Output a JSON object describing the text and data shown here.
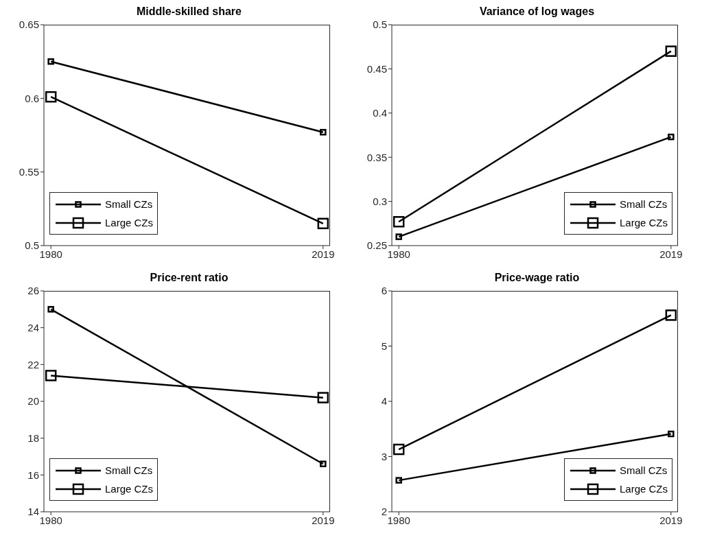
{
  "chart_data": [
    {
      "type": "line",
      "title": "Middle-skilled share",
      "x": [
        "1980",
        "2019"
      ],
      "xlim": [
        "1979",
        "2020"
      ],
      "xticks": [
        "1980",
        "2019"
      ],
      "ylim": [
        0.5,
        0.65
      ],
      "yticks": [
        0.5,
        0.55,
        0.6,
        0.65
      ],
      "marker": "square",
      "legend": "bottom left",
      "grid": false,
      "series": [
        {
          "name": "Small CZs",
          "color": "#000000",
          "values": [
            0.625,
            0.577
          ]
        },
        {
          "name": "Large CZs",
          "color": "#000000",
          "values": [
            0.601,
            0.515
          ]
        }
      ]
    },
    {
      "type": "line",
      "title": "Variance of log wages",
      "x": [
        "1980",
        "2019"
      ],
      "xlim": [
        "1979",
        "2020"
      ],
      "xticks": [
        "1980",
        "2019"
      ],
      "ylim": [
        0.25,
        0.5
      ],
      "yticks": [
        0.25,
        0.3,
        0.35,
        0.4,
        0.45,
        0.5
      ],
      "marker": "square",
      "legend": "bottom right",
      "grid": false,
      "series": [
        {
          "name": "Small CZs",
          "color": "#000000",
          "values": [
            0.26,
            0.373
          ]
        },
        {
          "name": "Large CZs",
          "color": "#000000",
          "values": [
            0.277,
            0.47
          ]
        }
      ]
    },
    {
      "type": "line",
      "title": "Price-rent ratio",
      "x": [
        "1980",
        "2019"
      ],
      "xlim": [
        "1979",
        "2020"
      ],
      "xticks": [
        "1980",
        "2019"
      ],
      "ylim": [
        14,
        26
      ],
      "yticks": [
        14,
        16,
        18,
        20,
        22,
        24,
        26
      ],
      "marker": "square",
      "legend": "bottom left",
      "grid": false,
      "series": [
        {
          "name": "Small CZs",
          "color": "#000000",
          "values": [
            25.0,
            16.6
          ]
        },
        {
          "name": "Large CZs",
          "color": "#000000",
          "values": [
            21.4,
            20.2
          ]
        }
      ]
    },
    {
      "type": "line",
      "title": "Price-wage ratio",
      "x": [
        "1980",
        "2019"
      ],
      "xlim": [
        "1979",
        "2020"
      ],
      "xticks": [
        "1980",
        "2019"
      ],
      "ylim": [
        2,
        6
      ],
      "yticks": [
        2,
        3,
        4,
        5,
        6
      ],
      "marker": "square",
      "legend": "bottom right",
      "grid": false,
      "series": [
        {
          "name": "Small CZs",
          "color": "#000000",
          "values": [
            2.57,
            3.41
          ]
        },
        {
          "name": "Large CZs",
          "color": "#000000",
          "values": [
            3.13,
            5.56
          ]
        }
      ]
    }
  ]
}
